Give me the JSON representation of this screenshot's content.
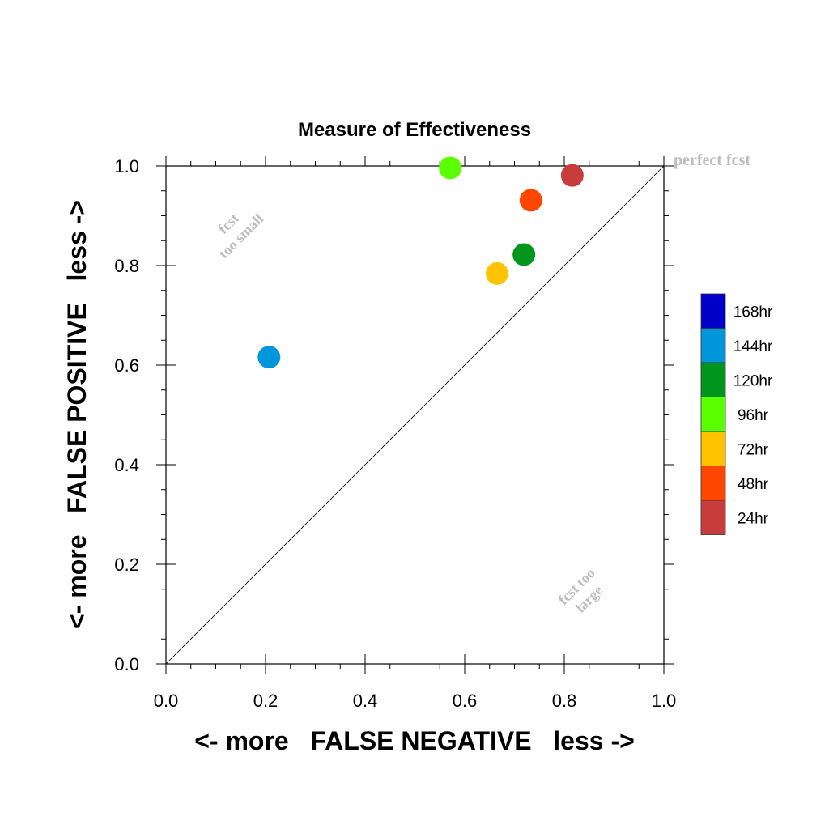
{
  "chart_data": {
    "type": "scatter",
    "title": "Measure of Effectiveness",
    "xlabel": "<- more   FALSE NEGATIVE   less ->",
    "ylabel": "<- more   FALSE POSITIVE   less ->",
    "xlim": [
      0,
      1
    ],
    "ylim": [
      0,
      1
    ],
    "x_ticks": [
      "0.0",
      "0.2",
      "0.4",
      "0.6",
      "0.8",
      "1.0"
    ],
    "y_ticks": [
      "0.0",
      "0.2",
      "0.4",
      "0.6",
      "0.8",
      "1.0"
    ],
    "grid": false,
    "diagonal_line": true,
    "legend_position": "right",
    "annotations": {
      "perfect": "perfect fcst",
      "too_small_1": "fcst",
      "too_small_2": "too small",
      "too_large_1": "fcst too",
      "too_large_2": "large"
    },
    "series": [
      {
        "name": "168hr",
        "color": "#0000c8",
        "points": []
      },
      {
        "name": "144hr",
        "color": "#0096dc",
        "points": [
          {
            "x": 0.207,
            "y": 0.616
          }
        ]
      },
      {
        "name": "120hr",
        "color": "#00961e",
        "points": [
          {
            "x": 0.719,
            "y": 0.822
          }
        ]
      },
      {
        "name": "96hr",
        "color": "#5aff00",
        "points": [
          {
            "x": 0.571,
            "y": 0.996
          }
        ]
      },
      {
        "name": "72hr",
        "color": "#ffc300",
        "points": [
          {
            "x": 0.665,
            "y": 0.784
          }
        ]
      },
      {
        "name": "48hr",
        "color": "#ff4600",
        "points": [
          {
            "x": 0.733,
            "y": 0.931
          }
        ]
      },
      {
        "name": "24hr",
        "color": "#c83c3c",
        "points": [
          {
            "x": 0.816,
            "y": 0.981
          }
        ]
      }
    ]
  }
}
